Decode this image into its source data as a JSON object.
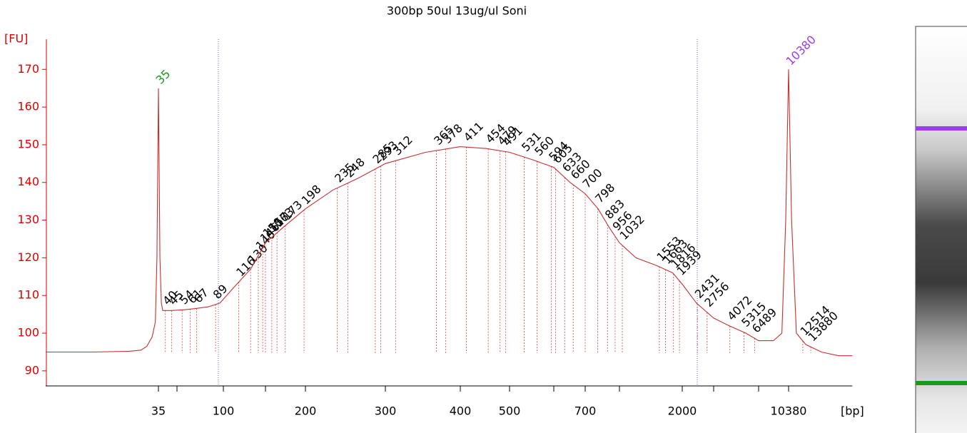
{
  "chart_data": {
    "type": "line",
    "title": "300bp 50ul 13ug/ul Soni",
    "y_label": "[FU]",
    "x_label": "[bp]",
    "xlim": [
      4,
      24000
    ],
    "xticks": [
      35,
      {
        "value": 50,
        "label": null
      },
      100,
      {
        "value": 150,
        "label": null
      },
      200,
      300,
      400,
      500,
      {
        "value": 600,
        "label": null
      },
      700,
      {
        "value": 1000,
        "label": null
      },
      2000,
      {
        "value": 3000,
        "label": null
      },
      {
        "value": 7000,
        "label": null
      },
      10380
    ],
    "ylim": [
      86,
      178
    ],
    "yticks": [
      90,
      100,
      110,
      120,
      130,
      140,
      150,
      160,
      170
    ],
    "series": [
      {
        "color": "#c83030",
        "x": [
          4,
          10,
          20,
          25,
          28,
          31,
          33,
          34,
          35,
          36,
          37,
          38,
          45,
          55,
          65,
          80,
          95,
          110,
          130,
          150,
          170,
          200,
          230,
          260,
          300,
          350,
          400,
          450,
          500,
          550,
          600,
          650,
          700,
          800,
          900,
          1000,
          1200,
          1500,
          1800,
          2000,
          2400,
          3000,
          4000,
          5500,
          7000,
          8500,
          9500,
          10000,
          10380,
          10800,
          11500,
          13000,
          16000,
          20000,
          24000
        ],
        "values": [
          95,
          95,
          95.2,
          95.5,
          96.5,
          99,
          103,
          120,
          165,
          120,
          108,
          106,
          106,
          106.2,
          106.5,
          107,
          108,
          112,
          117,
          124,
          128,
          133,
          138,
          141,
          145,
          148,
          149.5,
          149,
          148,
          146,
          144,
          140,
          137,
          133,
          128,
          124,
          120,
          118,
          116,
          113,
          108,
          104,
          102,
          100,
          98,
          98,
          100,
          130,
          170,
          130,
          100,
          97,
          95,
          94,
          94
        ]
      }
    ],
    "markers": [
      {
        "label": 35,
        "color": "#1a9a1a"
      },
      {
        "label": 10380,
        "color": "#9b3cf0"
      }
    ],
    "peak_labels": [
      40,
      45,
      54,
      61,
      67,
      89,
      116,
      130,
      140,
      146,
      150,
      157,
      163,
      173,
      198,
      235,
      248,
      285,
      293,
      312,
      365,
      378,
      411,
      454,
      479,
      491,
      531,
      560,
      594,
      605,
      633,
      660,
      700,
      798,
      883,
      956,
      1032,
      1553,
      1663,
      1816,
      1939,
      2431,
      2756,
      4072,
      5315,
      6489,
      12514,
      13880
    ]
  }
}
